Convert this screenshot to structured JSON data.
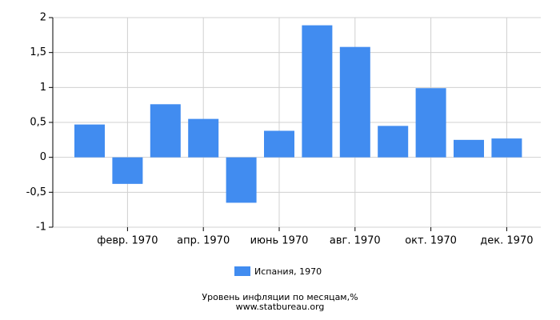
{
  "chart_data": {
    "type": "bar",
    "title": "Уровень инфляции по месяцам,%",
    "source": "www.statbureau.org",
    "categories": [
      null,
      "февр. 1970",
      null,
      "апр. 1970",
      null,
      "июнь 1970",
      null,
      "авг. 1970",
      null,
      "окт. 1970",
      null,
      "дек. 1970"
    ],
    "series": [
      {
        "name": "Испания, 1970",
        "color": "#418cf0",
        "values": [
          0.47,
          -0.38,
          0.76,
          0.55,
          -0.65,
          0.38,
          1.89,
          1.58,
          0.45,
          0.99,
          0.25,
          0.27
        ]
      }
    ],
    "ylim": [
      -1,
      2
    ],
    "yticks": [
      -1,
      {
        "value": -0.5,
        "label": "-0,5"
      },
      0,
      {
        "value": 0.5,
        "label": "0,5"
      },
      1,
      {
        "value": 1.5,
        "label": "1,5"
      },
      2
    ],
    "grid": true,
    "legend": "bottom"
  }
}
